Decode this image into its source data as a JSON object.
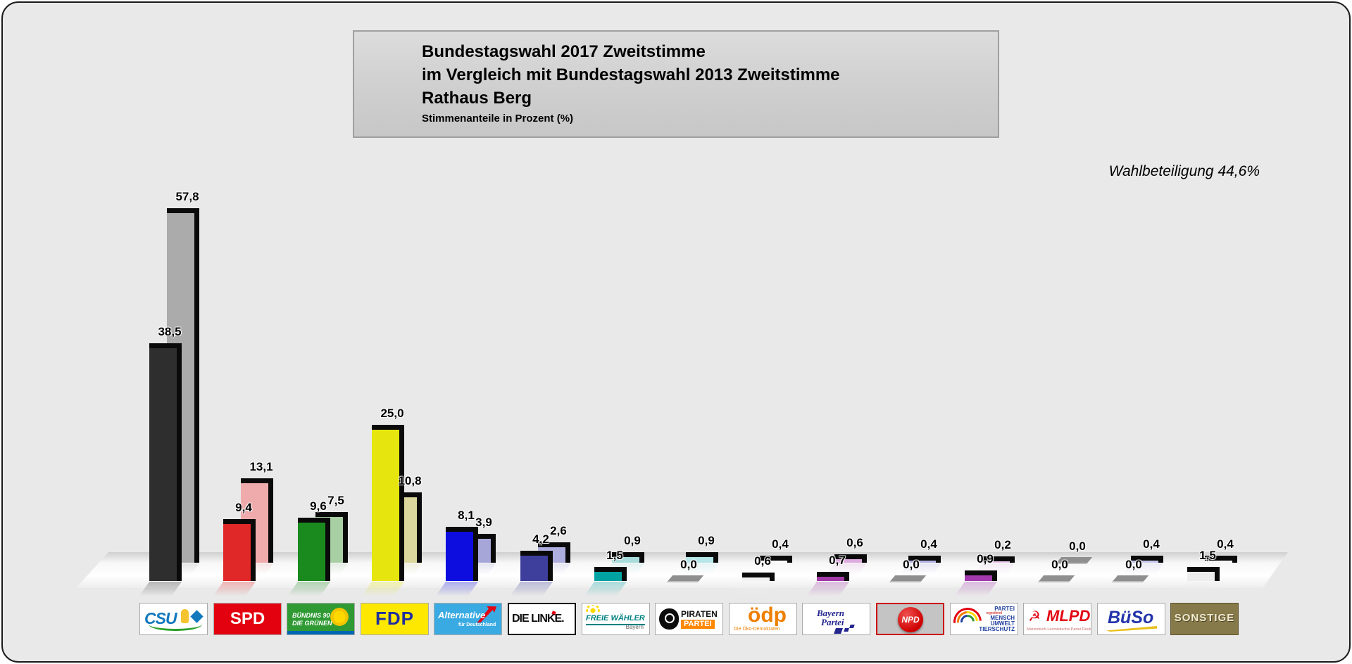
{
  "title": {
    "line1": "Bundestagswahl 2017 Zweitstimme",
    "line2": "im Vergleich mit Bundestagswahl 2013 Zweitstimme",
    "line3": "Rathaus Berg",
    "subtitle": "Stimmenanteile in Prozent (%)"
  },
  "annotation": {
    "turnout": "Wahlbeteiligung 44,6%"
  },
  "chart_data": {
    "type": "bar",
    "title": "Bundestagswahl 2017 Zweitstimme im Vergleich mit Bundestagswahl 2013 Zweitstimme — Rathaus Berg",
    "ylabel": "Stimmenanteile in Prozent (%)",
    "unit": "%",
    "ylim": [
      0,
      60
    ],
    "grid": false,
    "legend_position": "bottom",
    "categories": [
      "CSU",
      "SPD",
      "BÜNDNIS 90/DIE GRÜNEN",
      "FDP",
      "AfD",
      "DIE LINKE",
      "FREIE WÄHLER",
      "PIRATENPARTEI",
      "ödp",
      "BAYERNPARTEI",
      "NPD",
      "TIERSCHUTZPARTEI",
      "MLPD",
      "BüSo",
      "SONSTIGE"
    ],
    "series": [
      {
        "name": "Bundestagswahl 2017 Zweitstimme",
        "values": [
          38.5,
          9.4,
          9.6,
          25.0,
          8.1,
          4.2,
          1.5,
          0.0,
          0.6,
          0.7,
          0.0,
          0.9,
          0.0,
          0.0,
          1.5
        ],
        "labels": [
          "38,5",
          "9,4",
          "9,6",
          "25,0",
          "8,1",
          "4,2",
          "1,5",
          "0,0",
          "0,6",
          "0,7",
          "0,0",
          "0,9",
          "0,0",
          "0,0",
          "1,5"
        ],
        "colors": [
          "#2e2e2e",
          "#e02828",
          "#1a8a1f",
          "#e6e60e",
          "#0d0de0",
          "#3e3e9d",
          "#00a2a2",
          "#8f8f8f",
          "#f2f2f2",
          "#a23aa8",
          "#8f8f8f",
          "#a23aae",
          "#8f8f8f",
          "#8f8f8f",
          "#ededed"
        ]
      },
      {
        "name": "Bundestagswahl 2013 Zweitstimme",
        "values": [
          57.8,
          13.1,
          7.5,
          10.8,
          3.9,
          2.6,
          0.9,
          0.9,
          0.4,
          0.6,
          0.4,
          0.2,
          0.0,
          0.4,
          0.4
        ],
        "labels": [
          "57,8",
          "13,1",
          "7,5",
          "10,8",
          "3,9",
          "2,6",
          "0,9",
          "0,9",
          "0,4",
          "0,6",
          "0,4",
          "0,2",
          "0,0",
          "0,4",
          "0,4"
        ],
        "colors": [
          "#ababab",
          "#efabab",
          "#a8cfa4",
          "#dcd79c",
          "#a6a6d8",
          "#aeaede",
          "#a8dcdc",
          "#b6e6e8",
          "#fafafa",
          "#deabe0",
          "#b2b2e4",
          "#e8c6ea",
          "#8f8f8f",
          "#c6c6ec",
          "#f6f6f6"
        ]
      }
    ]
  },
  "legend": {
    "items": [
      {
        "id": "csu",
        "name": "CSU",
        "lines": [
          {
            "text": "CSU",
            "cls": "csu-t"
          }
        ]
      },
      {
        "id": "spd",
        "name": "SPD",
        "lines": [
          {
            "text": "SPD",
            "cls": "spd-t"
          }
        ]
      },
      {
        "id": "gruene",
        "name": "BÜNDNIS 90/DIE GRÜNEN",
        "lines": [
          {
            "text": "BÜNDNIS 90",
            "cls": "gr-t1"
          },
          {
            "text": "DIE GRÜNEN",
            "cls": "gr-t2"
          }
        ]
      },
      {
        "id": "fdp",
        "name": "FDP",
        "lines": [
          {
            "text": "FDP",
            "cls": "fdp-t"
          }
        ]
      },
      {
        "id": "afd",
        "name": "Alternative für Deutschland",
        "lines": [
          {
            "text": "Alternative",
            "cls": "afd-t1"
          },
          {
            "text": "für Deutschland",
            "cls": "afd-t2"
          }
        ]
      },
      {
        "id": "linke",
        "name": "DIE LINKE.",
        "lines": [
          {
            "text": "DIE LINKE.",
            "cls": "li-t"
          }
        ]
      },
      {
        "id": "fw",
        "name": "FREIE WÄHLER Bayern",
        "lines": [
          {
            "text": "FREIE WÄHLER",
            "cls": "fw-t1"
          },
          {
            "text": "Bayern",
            "cls": "fw-t2"
          }
        ]
      },
      {
        "id": "piraten",
        "name": "PIRATENPARTEI",
        "lines": [
          {
            "text": "PIRATEN",
            "cls": "pi-t1"
          },
          {
            "text": "PARTEI",
            "cls": "pi-t2"
          }
        ]
      },
      {
        "id": "oedp",
        "name": "ödp — Die Öko-Demokraten",
        "lines": [
          {
            "text": "ödp",
            "cls": "oe-t1"
          },
          {
            "text": "Die Öko-Demokraten",
            "cls": "oe-t2"
          }
        ]
      },
      {
        "id": "bp",
        "name": "BAYERNPARTEI",
        "lines": [
          {
            "text": "Bayern",
            "cls": "bp-t1"
          },
          {
            "text": "Partei",
            "cls": "bp-t2"
          }
        ]
      },
      {
        "id": "npd",
        "name": "NPD",
        "lines": [
          {
            "text": "NPD",
            "cls": "npd-t"
          }
        ]
      },
      {
        "id": "tier",
        "name": "PARTEI MENSCH UMWELT TIERSCHUTZ",
        "lines": [
          {
            "text": "PARTEI",
            "cls": "ti-t"
          },
          {
            "text": "ergreifend",
            "cls": "ti-r"
          },
          {
            "text": "MENSCH",
            "cls": "ti-t"
          },
          {
            "text": "UMWELT",
            "cls": "ti-t"
          },
          {
            "text": "TIERSCHUTZ",
            "cls": "ti-t"
          }
        ]
      },
      {
        "id": "mlpd",
        "name": "MLPD",
        "icon": "hammer-sickle",
        "glyph": "☭",
        "lines": [
          {
            "text": "MLPD",
            "cls": "ml-t1"
          },
          {
            "text": "Marxistisch-Leninistische Partei Deutschlands",
            "cls": "ml-t2"
          }
        ]
      },
      {
        "id": "bueso",
        "name": "BüSo",
        "lines": [
          {
            "text": "BüSo",
            "cls": "bu-t1"
          }
        ]
      },
      {
        "id": "sonstige",
        "name": "SONSTIGE",
        "lines": [
          {
            "text": "SONSTIGE",
            "cls": "so-t"
          }
        ]
      }
    ]
  }
}
